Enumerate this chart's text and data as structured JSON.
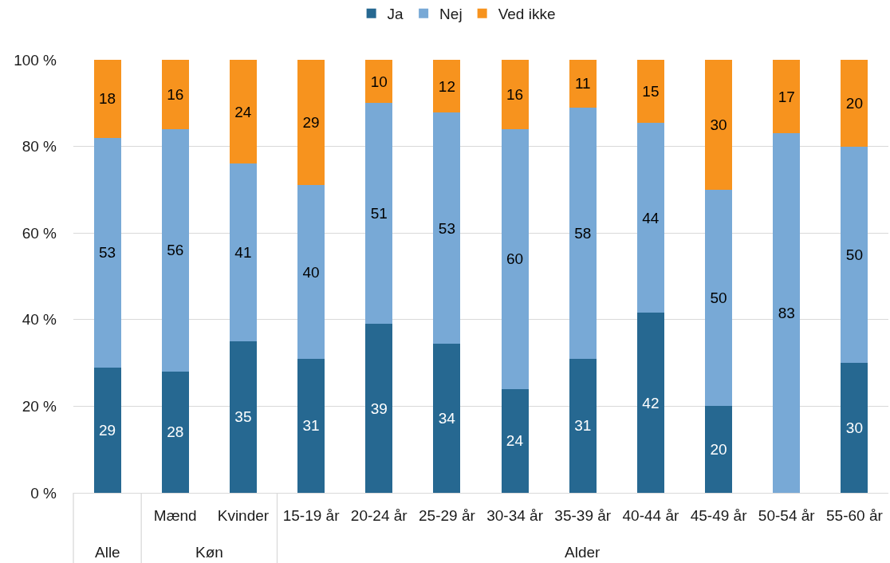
{
  "chart_data": {
    "type": "bar",
    "stacked": true,
    "categories": [
      null,
      "Mænd",
      "Kvinder",
      "15-19 år",
      "20-24 år",
      "25-29 år",
      "30-34 år",
      "35-39 år",
      "40-44 år",
      "45-49 år",
      "50-54 år",
      "55-60 år"
    ],
    "series": [
      {
        "name": "Ja",
        "color": "#266891",
        "values": [
          29,
          28,
          35,
          31,
          39,
          34.4,
          24,
          31,
          41.6,
          20,
          0,
          30
        ],
        "value_labels": [
          "29",
          "28",
          "35",
          "31",
          "39",
          "34",
          "24",
          "31",
          "42",
          "20",
          null,
          "30"
        ]
      },
      {
        "name": "Nej",
        "color": "#78a9d6",
        "values": [
          53,
          56,
          41,
          40,
          51,
          53.4,
          60,
          58,
          43.8,
          50,
          83,
          50
        ],
        "value_labels": [
          "53",
          "56",
          "41",
          "40",
          "51",
          "53",
          "60",
          "58",
          "44",
          "50",
          "83",
          "50"
        ]
      },
      {
        "name": "Ved ikke",
        "color": "#f7931e",
        "values": [
          18,
          16,
          24,
          29,
          10,
          12.2,
          16,
          11,
          14.6,
          30,
          17,
          20
        ],
        "value_labels": [
          "18",
          "16",
          "24",
          "29",
          "10",
          "12",
          "16",
          "11",
          "15",
          "30",
          "17",
          "20"
        ]
      }
    ],
    "ylim": [
      0,
      100
    ],
    "yticks": [
      {
        "value": 0,
        "label": "0 %"
      },
      {
        "value": 20,
        "label": "20 %"
      },
      {
        "value": 40,
        "label": "40 %"
      },
      {
        "value": 60,
        "label": "60 %"
      },
      {
        "value": 80,
        "label": "80 %"
      },
      {
        "value": 100,
        "label": "100 %"
      }
    ],
    "grid": "y",
    "legend": "top",
    "annotations": [
      "Alle",
      "Køn",
      "Alder"
    ]
  }
}
